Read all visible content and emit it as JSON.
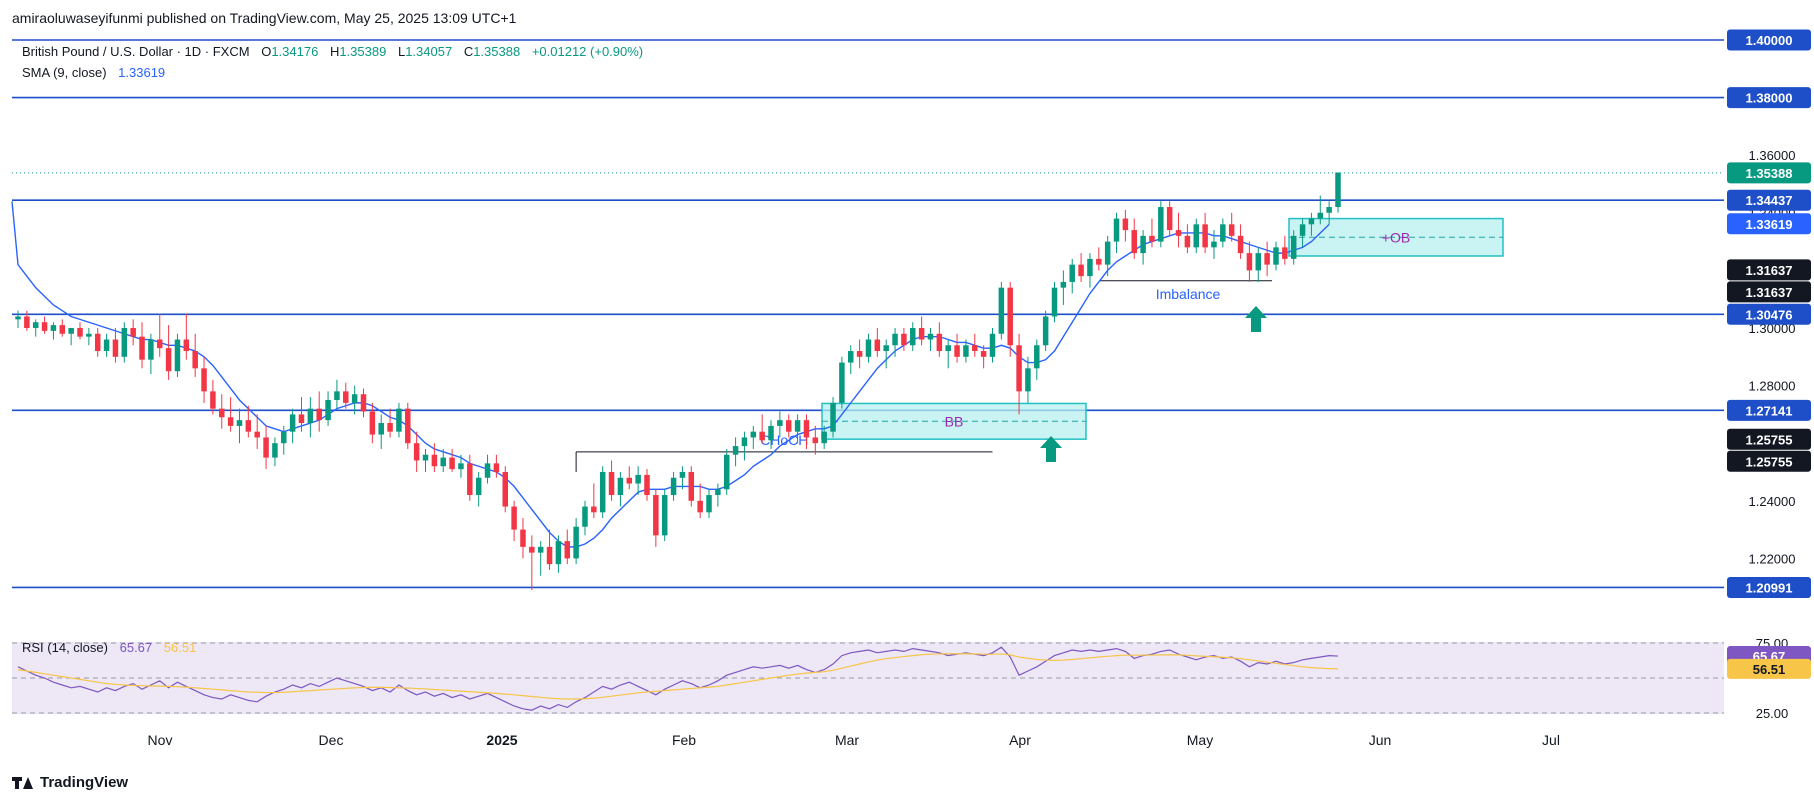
{
  "publisher": "amiraoluwaseyifunmi published on TradingView.com, May 25, 2025 13:09 UTC+1",
  "brand": "TradingView",
  "legend": {
    "symbol": "British Pound / U.S. Dollar · 1D · FXCM",
    "o_label": "O",
    "o_value": "1.34176",
    "h_label": "H",
    "h_value": "1.35389",
    "l_label": "L",
    "l_value": "1.34057",
    "c_label": "C",
    "c_value": "1.35388",
    "change": "+0.01212 (+0.90%)",
    "sma_label": "SMA (9, close)",
    "sma_value": "1.33619",
    "rsi_label": "RSI (14, close)",
    "rsi_value": "65.67",
    "rsi_ma_value": "56.51"
  },
  "colors": {
    "up": "#089981",
    "down": "#f23645",
    "level": "#1e4fc8",
    "sma": "#2962ff",
    "zone_fill": "#b7f0ef",
    "zone_border": "#22c1c3",
    "rsi_line": "#7e57c2",
    "rsi_ma": "#f7c548",
    "rsi_bg": "#ede7f6",
    "zone_label": "#9c27b0",
    "last_price": "#089981"
  },
  "chart_data": {
    "type": "candlestick",
    "symbol": "GBP/USD",
    "timeframe": "1D",
    "ylim": [
      1.2,
      1.4
    ],
    "yticks": [
      "1.22000",
      "1.24000",
      "1.26000",
      "1.28000",
      "1.30000",
      "1.32000",
      "1.34000",
      "1.36000"
    ],
    "xticks": [
      "Nov",
      "Dec",
      "2025",
      "Feb",
      "Mar",
      "Apr",
      "May",
      "Jun",
      "Jul"
    ],
    "levels": [
      {
        "value": 1.4,
        "label": "1.40000"
      },
      {
        "value": 1.38,
        "label": "1.38000"
      },
      {
        "value": 1.34437,
        "label": "1.34437"
      },
      {
        "value": 1.30476,
        "label": "1.30476"
      },
      {
        "value": 1.27141,
        "label": "1.27141"
      },
      {
        "value": 1.20991,
        "label": "1.20991"
      }
    ],
    "price_tags": [
      {
        "value": 1.35388,
        "label": "1.35388",
        "style": "green"
      },
      {
        "value": 1.33619,
        "label": "1.33619",
        "style": "blue"
      },
      {
        "value": 1.31637,
        "label": "1.31637",
        "style": "black"
      },
      {
        "value": 1.31637,
        "label": "1.31637",
        "style": "black"
      },
      {
        "value": 1.25755,
        "label": "1.25755",
        "style": "black"
      },
      {
        "value": 1.25755,
        "label": "1.25755",
        "style": "black"
      }
    ],
    "last_price": 1.35388,
    "annotations": [
      {
        "label": "CHoCH"
      },
      {
        "label": "BB"
      },
      {
        "label": "Imbalance"
      },
      {
        "label": "+OB"
      }
    ],
    "rsi": {
      "period": 14,
      "value": 65.67,
      "ma_value": 56.51,
      "ticks": [
        "75.00",
        "25.00"
      ],
      "levels": [
        70,
        50,
        30
      ]
    },
    "candles": [
      [
        1.303,
        1.306,
        1.3,
        1.304
      ],
      [
        1.304,
        1.306,
        1.299,
        1.3
      ],
      [
        1.3,
        1.303,
        1.297,
        1.302
      ],
      [
        1.302,
        1.304,
        1.298,
        1.299
      ],
      [
        1.299,
        1.302,
        1.296,
        1.301
      ],
      [
        1.301,
        1.303,
        1.297,
        1.298
      ],
      [
        1.298,
        1.3,
        1.294,
        1.3
      ],
      [
        1.3,
        1.302,
        1.296,
        1.297
      ],
      [
        1.297,
        1.3,
        1.294,
        1.298
      ],
      [
        1.298,
        1.3,
        1.29,
        1.292
      ],
      [
        1.292,
        1.298,
        1.29,
        1.296
      ],
      [
        1.296,
        1.3,
        1.288,
        1.29
      ],
      [
        1.29,
        1.302,
        1.288,
        1.3
      ],
      [
        1.3,
        1.303,
        1.294,
        1.297
      ],
      [
        1.297,
        1.302,
        1.286,
        1.289
      ],
      [
        1.289,
        1.298,
        1.284,
        1.296
      ],
      [
        1.296,
        1.305,
        1.29,
        1.293
      ],
      [
        1.293,
        1.301,
        1.282,
        1.285
      ],
      [
        1.285,
        1.298,
        1.283,
        1.296
      ],
      [
        1.296,
        1.305,
        1.289,
        1.292
      ],
      [
        1.292,
        1.298,
        1.283,
        1.286
      ],
      [
        1.286,
        1.29,
        1.274,
        1.278
      ],
      [
        1.278,
        1.282,
        1.27,
        1.272
      ],
      [
        1.272,
        1.277,
        1.265,
        1.269
      ],
      [
        1.269,
        1.276,
        1.264,
        1.266
      ],
      [
        1.266,
        1.272,
        1.26,
        1.268
      ],
      [
        1.268,
        1.273,
        1.262,
        1.264
      ],
      [
        1.264,
        1.27,
        1.258,
        1.262
      ],
      [
        1.262,
        1.266,
        1.251,
        1.255
      ],
      [
        1.255,
        1.262,
        1.252,
        1.26
      ],
      [
        1.26,
        1.266,
        1.256,
        1.264
      ],
      [
        1.264,
        1.272,
        1.26,
        1.27
      ],
      [
        1.27,
        1.276,
        1.264,
        1.267
      ],
      [
        1.267,
        1.276,
        1.262,
        1.272
      ],
      [
        1.272,
        1.278,
        1.264,
        1.268
      ],
      [
        1.268,
        1.278,
        1.266,
        1.275
      ],
      [
        1.275,
        1.282,
        1.272,
        1.278
      ],
      [
        1.278,
        1.281,
        1.272,
        1.274
      ],
      [
        1.274,
        1.28,
        1.27,
        1.277
      ],
      [
        1.277,
        1.279,
        1.269,
        1.271
      ],
      [
        1.271,
        1.274,
        1.26,
        1.263
      ],
      [
        1.263,
        1.27,
        1.258,
        1.267
      ],
      [
        1.267,
        1.272,
        1.262,
        1.264
      ],
      [
        1.264,
        1.274,
        1.262,
        1.272
      ],
      [
        1.272,
        1.274,
        1.258,
        1.26
      ],
      [
        1.26,
        1.264,
        1.25,
        1.254
      ],
      [
        1.254,
        1.258,
        1.25,
        1.256
      ],
      [
        1.256,
        1.26,
        1.25,
        1.252
      ],
      [
        1.252,
        1.258,
        1.25,
        1.255
      ],
      [
        1.255,
        1.258,
        1.25,
        1.251
      ],
      [
        1.251,
        1.256,
        1.248,
        1.253
      ],
      [
        1.253,
        1.256,
        1.24,
        1.242
      ],
      [
        1.242,
        1.25,
        1.238,
        1.248
      ],
      [
        1.248,
        1.256,
        1.246,
        1.253
      ],
      [
        1.253,
        1.256,
        1.248,
        1.25
      ],
      [
        1.25,
        1.252,
        1.236,
        1.238
      ],
      [
        1.238,
        1.24,
        1.226,
        1.23
      ],
      [
        1.23,
        1.234,
        1.22,
        1.224
      ],
      [
        1.224,
        1.228,
        1.209,
        1.222
      ],
      [
        1.222,
        1.226,
        1.214,
        1.224
      ],
      [
        1.224,
        1.23,
        1.216,
        1.218
      ],
      [
        1.218,
        1.228,
        1.215,
        1.226
      ],
      [
        1.226,
        1.23,
        1.218,
        1.22
      ],
      [
        1.22,
        1.234,
        1.218,
        1.231
      ],
      [
        1.231,
        1.24,
        1.228,
        1.238
      ],
      [
        1.238,
        1.246,
        1.234,
        1.236
      ],
      [
        1.236,
        1.252,
        1.234,
        1.25
      ],
      [
        1.25,
        1.254,
        1.24,
        1.242
      ],
      [
        1.242,
        1.25,
        1.238,
        1.248
      ],
      [
        1.248,
        1.252,
        1.244,
        1.246
      ],
      [
        1.246,
        1.252,
        1.242,
        1.249
      ],
      [
        1.249,
        1.251,
        1.24,
        1.242
      ],
      [
        1.242,
        1.244,
        1.224,
        1.228
      ],
      [
        1.228,
        1.244,
        1.226,
        1.242
      ],
      [
        1.242,
        1.25,
        1.24,
        1.248
      ],
      [
        1.248,
        1.252,
        1.244,
        1.25
      ],
      [
        1.25,
        1.252,
        1.238,
        1.24
      ],
      [
        1.24,
        1.246,
        1.234,
        1.236
      ],
      [
        1.236,
        1.244,
        1.234,
        1.242
      ],
      [
        1.242,
        1.246,
        1.238,
        1.244
      ],
      [
        1.244,
        1.258,
        1.242,
        1.256
      ],
      [
        1.256,
        1.262,
        1.252,
        1.259
      ],
      [
        1.259,
        1.264,
        1.254,
        1.262
      ],
      [
        1.262,
        1.266,
        1.258,
        1.264
      ],
      [
        1.264,
        1.27,
        1.26,
        1.261
      ],
      [
        1.261,
        1.268,
        1.258,
        1.266
      ],
      [
        1.266,
        1.271,
        1.262,
        1.268
      ],
      [
        1.268,
        1.27,
        1.262,
        1.264
      ],
      [
        1.264,
        1.27,
        1.26,
        1.268
      ],
      [
        1.268,
        1.27,
        1.258,
        1.262
      ],
      [
        1.262,
        1.266,
        1.256,
        1.26
      ],
      [
        1.26,
        1.266,
        1.258,
        1.264
      ],
      [
        1.264,
        1.276,
        1.262,
        1.274
      ],
      [
        1.274,
        1.29,
        1.272,
        1.288
      ],
      [
        1.288,
        1.294,
        1.284,
        1.292
      ],
      [
        1.292,
        1.296,
        1.286,
        1.29
      ],
      [
        1.29,
        1.298,
        1.288,
        1.296
      ],
      [
        1.296,
        1.3,
        1.29,
        1.292
      ],
      [
        1.292,
        1.296,
        1.286,
        1.294
      ],
      [
        1.294,
        1.3,
        1.29,
        1.298
      ],
      [
        1.298,
        1.3,
        1.292,
        1.294
      ],
      [
        1.294,
        1.302,
        1.292,
        1.3
      ],
      [
        1.3,
        1.304,
        1.294,
        1.296
      ],
      [
        1.296,
        1.3,
        1.292,
        1.298
      ],
      [
        1.298,
        1.302,
        1.29,
        1.292
      ],
      [
        1.292,
        1.296,
        1.286,
        1.294
      ],
      [
        1.294,
        1.298,
        1.288,
        1.29
      ],
      [
        1.29,
        1.296,
        1.288,
        1.294
      ],
      [
        1.294,
        1.298,
        1.29,
        1.292
      ],
      [
        1.292,
        1.294,
        1.286,
        1.29
      ],
      [
        1.29,
        1.3,
        1.288,
        1.298
      ],
      [
        1.298,
        1.316,
        1.296,
        1.314
      ],
      [
        1.314,
        1.316,
        1.29,
        1.294
      ],
      [
        1.294,
        1.298,
        1.27,
        1.278
      ],
      [
        1.278,
        1.29,
        1.274,
        1.286
      ],
      [
        1.286,
        1.296,
        1.282,
        1.294
      ],
      [
        1.294,
        1.306,
        1.292,
        1.304
      ],
      [
        1.304,
        1.316,
        1.302,
        1.314
      ],
      [
        1.314,
        1.32,
        1.308,
        1.316
      ],
      [
        1.316,
        1.324,
        1.312,
        1.322
      ],
      [
        1.322,
        1.326,
        1.316,
        1.318
      ],
      [
        1.318,
        1.326,
        1.314,
        1.324
      ],
      [
        1.324,
        1.328,
        1.32,
        1.322
      ],
      [
        1.322,
        1.332,
        1.318,
        1.33
      ],
      [
        1.33,
        1.34,
        1.326,
        1.338
      ],
      [
        1.338,
        1.341,
        1.33,
        1.334
      ],
      [
        1.334,
        1.338,
        1.324,
        1.326
      ],
      [
        1.326,
        1.334,
        1.322,
        1.332
      ],
      [
        1.332,
        1.338,
        1.328,
        1.33
      ],
      [
        1.33,
        1.344,
        1.328,
        1.342
      ],
      [
        1.342,
        1.344,
        1.332,
        1.334
      ],
      [
        1.334,
        1.34,
        1.328,
        1.332
      ],
      [
        1.332,
        1.336,
        1.326,
        1.328
      ],
      [
        1.328,
        1.338,
        1.326,
        1.336
      ],
      [
        1.336,
        1.34,
        1.326,
        1.328
      ],
      [
        1.328,
        1.334,
        1.324,
        1.33
      ],
      [
        1.33,
        1.338,
        1.328,
        1.336
      ],
      [
        1.336,
        1.34,
        1.33,
        1.332
      ],
      [
        1.332,
        1.336,
        1.324,
        1.326
      ],
      [
        1.326,
        1.33,
        1.316,
        1.32
      ],
      [
        1.32,
        1.328,
        1.316,
        1.326
      ],
      [
        1.326,
        1.33,
        1.318,
        1.322
      ],
      [
        1.322,
        1.33,
        1.32,
        1.328
      ],
      [
        1.328,
        1.332,
        1.322,
        1.324
      ],
      [
        1.324,
        1.334,
        1.322,
        1.332
      ],
      [
        1.332,
        1.338,
        1.328,
        1.336
      ],
      [
        1.336,
        1.34,
        1.332,
        1.338
      ],
      [
        1.338,
        1.346,
        1.336,
        1.34
      ],
      [
        1.34,
        1.344,
        1.336,
        1.342
      ],
      [
        1.342,
        1.354,
        1.34,
        1.354
      ]
    ],
    "sma": [
      1.322,
      1.318,
      1.314,
      1.311,
      1.308,
      1.306,
      1.304,
      1.303,
      1.302,
      1.301,
      1.3,
      1.299,
      1.298,
      1.297,
      1.296,
      1.296,
      1.295,
      1.294,
      1.294,
      1.293,
      1.292,
      1.29,
      1.287,
      1.283,
      1.279,
      1.275,
      1.272,
      1.269,
      1.266,
      1.265,
      1.264,
      1.265,
      1.266,
      1.267,
      1.268,
      1.27,
      1.272,
      1.273,
      1.274,
      1.274,
      1.273,
      1.271,
      1.269,
      1.268,
      1.266,
      1.263,
      1.26,
      1.258,
      1.257,
      1.256,
      1.255,
      1.253,
      1.252,
      1.251,
      1.25,
      1.248,
      1.245,
      1.241,
      1.237,
      1.233,
      1.229,
      1.226,
      1.224,
      1.224,
      1.225,
      1.227,
      1.23,
      1.234,
      1.237,
      1.24,
      1.243,
      1.244,
      1.244,
      1.244,
      1.245,
      1.245,
      1.245,
      1.245,
      1.244,
      1.244,
      1.245,
      1.247,
      1.249,
      1.252,
      1.254,
      1.256,
      1.259,
      1.261,
      1.263,
      1.264,
      1.265,
      1.265,
      1.266,
      1.27,
      1.274,
      1.278,
      1.282,
      1.286,
      1.289,
      1.292,
      1.294,
      1.296,
      1.297,
      1.297,
      1.297,
      1.296,
      1.295,
      1.295,
      1.294,
      1.293,
      1.293,
      1.294,
      1.293,
      1.29,
      1.288,
      1.288,
      1.289,
      1.292,
      1.297,
      1.302,
      1.307,
      1.312,
      1.316,
      1.32,
      1.323,
      1.325,
      1.327,
      1.329,
      1.33,
      1.331,
      1.332,
      1.333,
      1.333,
      1.333,
      1.333,
      1.332,
      1.332,
      1.331,
      1.33,
      1.329,
      1.328,
      1.327,
      1.326,
      1.326,
      1.327,
      1.328,
      1.33,
      1.333,
      1.336
    ],
    "rsi_series": [
      58,
      55,
      52,
      50,
      47,
      45,
      43,
      44,
      42,
      40,
      43,
      41,
      44,
      46,
      42,
      45,
      48,
      43,
      47,
      44,
      41,
      38,
      36,
      35,
      38,
      36,
      34,
      33,
      37,
      40,
      42,
      45,
      43,
      46,
      44,
      47,
      50,
      48,
      46,
      44,
      41,
      43,
      40,
      45,
      41,
      38,
      40,
      37,
      39,
      36,
      38,
      35,
      37,
      39,
      36,
      33,
      30,
      28,
      27,
      30,
      28,
      31,
      29,
      33,
      36,
      40,
      44,
      42,
      45,
      47,
      44,
      41,
      38,
      42,
      45,
      48,
      46,
      43,
      45,
      48,
      52,
      54,
      56,
      58,
      57,
      58,
      59,
      57,
      59,
      56,
      54,
      56,
      60,
      66,
      68,
      69,
      70,
      68,
      69,
      70,
      69,
      71,
      70,
      69,
      68,
      66,
      67,
      68,
      67,
      66,
      68,
      72,
      65,
      52,
      55,
      58,
      62,
      66,
      68,
      70,
      69,
      70,
      69,
      70,
      71,
      69,
      64,
      66,
      67,
      69,
      70,
      67,
      65,
      63,
      65,
      66,
      64,
      65,
      62,
      58,
      61,
      60,
      62,
      60,
      61,
      63,
      64,
      65,
      66,
      65.67
    ],
    "rsi_ma_series": [
      56,
      55,
      54,
      53,
      52,
      51,
      50,
      49,
      48,
      47,
      46,
      45.5,
      45,
      44.7,
      44.5,
      44.3,
      44.2,
      44,
      43.8,
      43.5,
      43,
      42.5,
      42,
      41.5,
      41,
      40.5,
      40,
      39.8,
      39.6,
      39.6,
      39.8,
      40.2,
      40.6,
      41,
      41.4,
      41.8,
      42.2,
      42.6,
      43,
      43.2,
      43.3,
      43.3,
      43.2,
      43,
      42.8,
      42.5,
      42.2,
      41.8,
      41.4,
      41,
      40.6,
      40.2,
      39.8,
      39.4,
      39,
      38.5,
      38,
      37.4,
      36.8,
      36.2,
      35.6,
      35.2,
      35,
      35,
      35.2,
      35.6,
      36.2,
      37,
      37.8,
      38.6,
      39.4,
      40,
      40.5,
      41,
      41.5,
      42,
      42.5,
      43,
      43.5,
      44,
      45,
      46,
      47,
      48,
      49,
      50,
      51,
      52,
      52.8,
      53.5,
      54,
      54.5,
      55.5,
      57,
      58.5,
      60,
      61.5,
      62.8,
      63.8,
      64.6,
      65.3,
      66,
      66.6,
      67,
      67.2,
      67.3,
      67.3,
      67.3,
      67.2,
      67,
      67,
      67.2,
      66.5,
      65,
      64,
      63.2,
      62.8,
      62.6,
      62.8,
      63.2,
      63.8,
      64.4,
      65,
      65.5,
      66,
      66.3,
      66.3,
      66.3,
      66.4,
      66.5,
      66.6,
      66.5,
      66.2,
      65.8,
      65.5,
      65.2,
      64.8,
      64.4,
      63.8,
      63,
      62.2,
      61.3,
      60.5,
      59.6,
      58.8,
      58,
      57.4,
      57,
      56.7,
      56.51
    ]
  }
}
